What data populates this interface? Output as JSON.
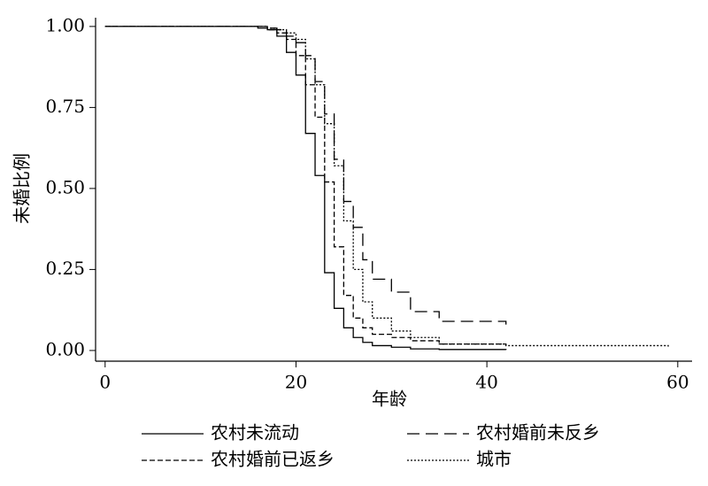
{
  "chart_data": {
    "type": "step",
    "xlabel": "年龄",
    "ylabel": "未婚比例",
    "x": [
      0,
      15,
      16,
      17,
      18,
      19,
      20,
      21,
      22,
      23,
      24,
      25,
      26,
      27,
      28,
      30,
      32,
      35,
      42,
      59
    ],
    "series": [
      {
        "name": "农村未流动",
        "color": "#000000",
        "line_style": "solid",
        "values": [
          1,
          1,
          0.995,
          0.99,
          0.97,
          0.92,
          0.85,
          0.67,
          0.54,
          0.24,
          0.13,
          0.07,
          0.04,
          0.025,
          0.015,
          0.01,
          0.005,
          0.003,
          0.002,
          null
        ]
      },
      {
        "name": "农村婚前未反乡",
        "color": "#000000",
        "line_style": "long-dash",
        "values": [
          1,
          1,
          1,
          0.995,
          0.99,
          0.97,
          0.95,
          0.91,
          0.83,
          0.73,
          0.59,
          0.46,
          0.38,
          0.28,
          0.22,
          0.18,
          0.12,
          0.09,
          0.08,
          null
        ]
      },
      {
        "name": "农村婚前已返乡",
        "color": "#000000",
        "line_style": "short-dash",
        "values": [
          1,
          1,
          1,
          0.99,
          0.98,
          0.96,
          0.91,
          0.82,
          0.72,
          0.52,
          0.32,
          0.17,
          0.1,
          0.07,
          0.05,
          0.04,
          0.03,
          0.02,
          0.015,
          null
        ]
      },
      {
        "name": "城市",
        "color": "#000000",
        "line_style": "dotted",
        "values": [
          1,
          1,
          1,
          0.995,
          0.99,
          0.98,
          0.96,
          0.9,
          0.82,
          0.7,
          0.57,
          0.4,
          0.25,
          0.15,
          0.1,
          0.06,
          0.04,
          0.02,
          0.015,
          0.012
        ]
      }
    ],
    "xlim": [
      -1,
      61.5
    ],
    "xticks": [
      0,
      20,
      40,
      60
    ],
    "ylim": [
      -0.033,
      1.027
    ],
    "yticks": [
      {
        "value": 0,
        "label": "0.00"
      },
      {
        "value": 0.25,
        "label": "0.25"
      },
      {
        "value": 0.5,
        "label": "0.50"
      },
      {
        "value": 0.75,
        "label": "0.75"
      },
      {
        "value": 1,
        "label": "1.00"
      }
    ],
    "legend": "bottom"
  }
}
